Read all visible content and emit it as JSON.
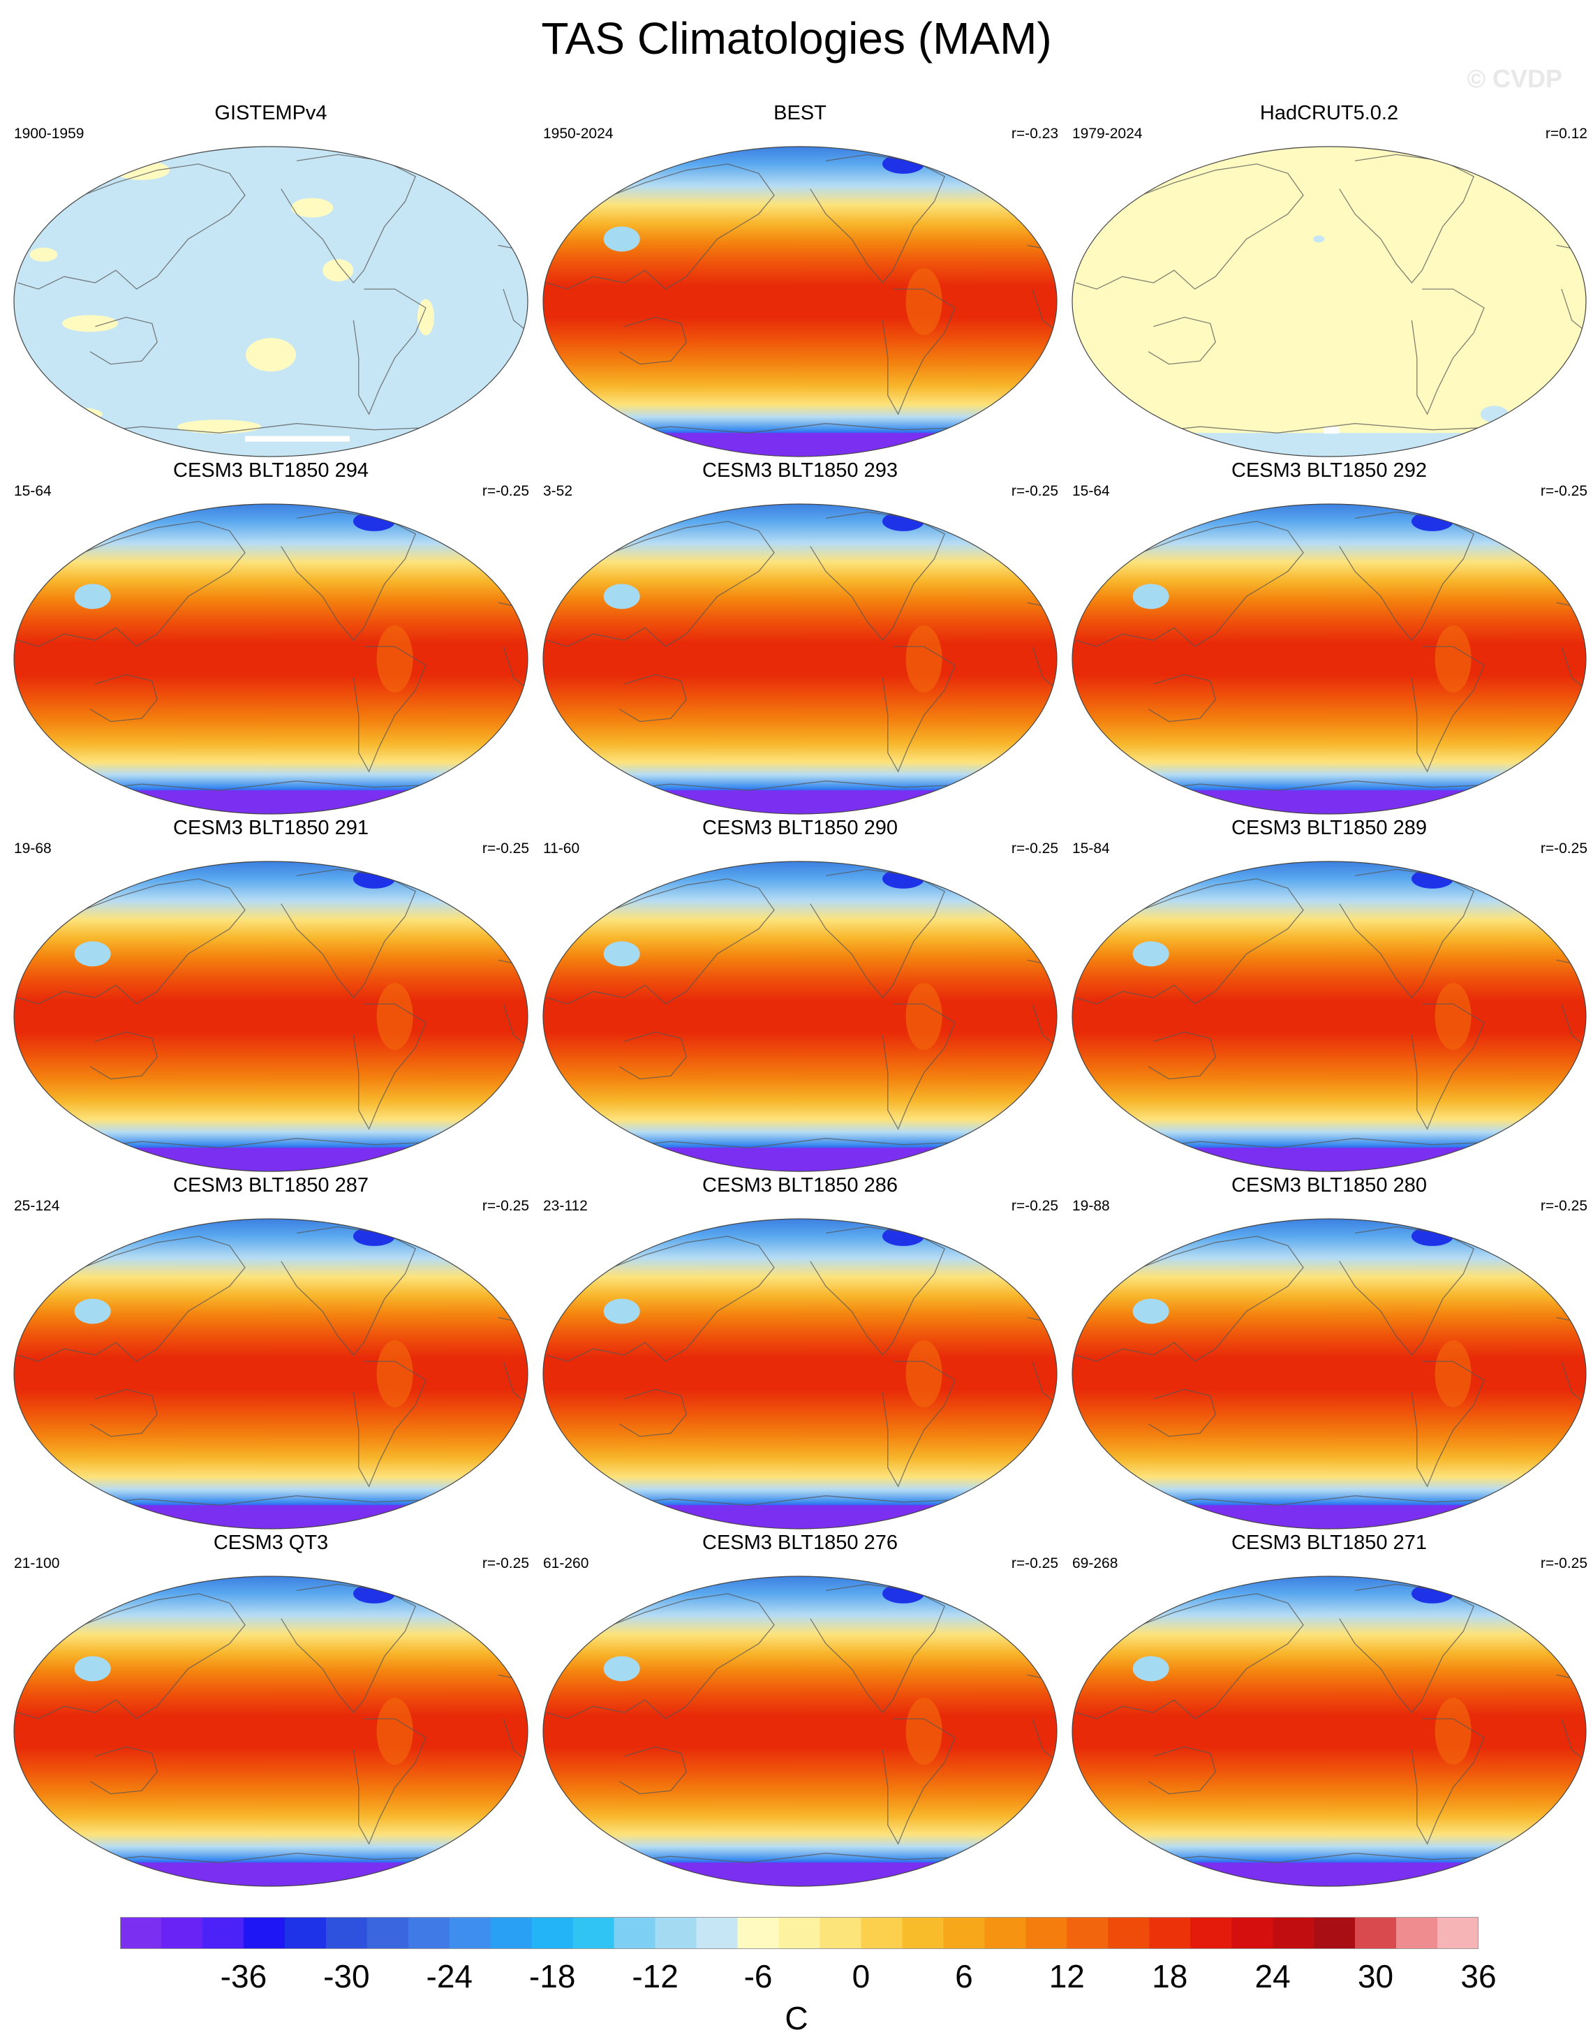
{
  "title": "TAS Climatologies (MAM)",
  "watermark": "© CVDP",
  "panels": [
    {
      "title": "GISTEMPv4",
      "period": "1900-1959",
      "corr": "",
      "style": "obs-light"
    },
    {
      "title": "BEST",
      "period": "1950-2024",
      "corr": "r=-0.23",
      "style": "full"
    },
    {
      "title": "HadCRUT5.0.2",
      "period": "1979-2024",
      "corr": "r=0.12",
      "style": "obs-yellow"
    },
    {
      "title": "CESM3 BLT1850 294",
      "period": "15-64",
      "corr": "r=-0.25",
      "style": "full"
    },
    {
      "title": "CESM3 BLT1850 293",
      "period": "3-52",
      "corr": "r=-0.25",
      "style": "full"
    },
    {
      "title": "CESM3 BLT1850 292",
      "period": "15-64",
      "corr": "r=-0.25",
      "style": "full"
    },
    {
      "title": "CESM3 BLT1850 291",
      "period": "19-68",
      "corr": "r=-0.25",
      "style": "full"
    },
    {
      "title": "CESM3 BLT1850 290",
      "period": "11-60",
      "corr": "r=-0.25",
      "style": "full"
    },
    {
      "title": "CESM3 BLT1850 289",
      "period": "15-84",
      "corr": "r=-0.25",
      "style": "full"
    },
    {
      "title": "CESM3 BLT1850 287",
      "period": "25-124",
      "corr": "r=-0.25",
      "style": "full"
    },
    {
      "title": "CESM3 BLT1850 286",
      "period": "23-112",
      "corr": "r=-0.25",
      "style": "full"
    },
    {
      "title": "CESM3 BLT1850 280",
      "period": "19-88",
      "corr": "r=-0.25",
      "style": "full"
    },
    {
      "title": "CESM3 QT3",
      "period": "21-100",
      "corr": "r=-0.25",
      "style": "full"
    },
    {
      "title": "CESM3 BLT1850 276",
      "period": "61-260",
      "corr": "r=-0.25",
      "style": "full"
    },
    {
      "title": "CESM3 BLT1850 271",
      "period": "69-268",
      "corr": "r=-0.25",
      "style": "full"
    }
  ],
  "colorbar": {
    "colors": [
      "#7b2ff0",
      "#6a23f5",
      "#4b22f7",
      "#1f16f5",
      "#1e32e8",
      "#2f52de",
      "#3a66e0",
      "#3f7ae6",
      "#3d8eef",
      "#2aa0f5",
      "#22b4f7",
      "#30c4f4",
      "#7dd0f3",
      "#a4dbf3",
      "#c7e6f5",
      "#fffbc0",
      "#fdf2a0",
      "#fde47a",
      "#fcd04d",
      "#f8bc2b",
      "#f7a81a",
      "#f69412",
      "#f47d0e",
      "#f2650c",
      "#ef4c0a",
      "#ec3209",
      "#e41a0b",
      "#d50e0e",
      "#c10d10",
      "#a80e13",
      "#d94a4f",
      "#ef8c90",
      "#f7b4b6"
    ],
    "tick_labels": [
      "-36",
      "-30",
      "-24",
      "-18",
      "-12",
      "-6",
      "0",
      "6",
      "12",
      "18",
      "24",
      "30",
      "36"
    ],
    "units": "C"
  }
}
